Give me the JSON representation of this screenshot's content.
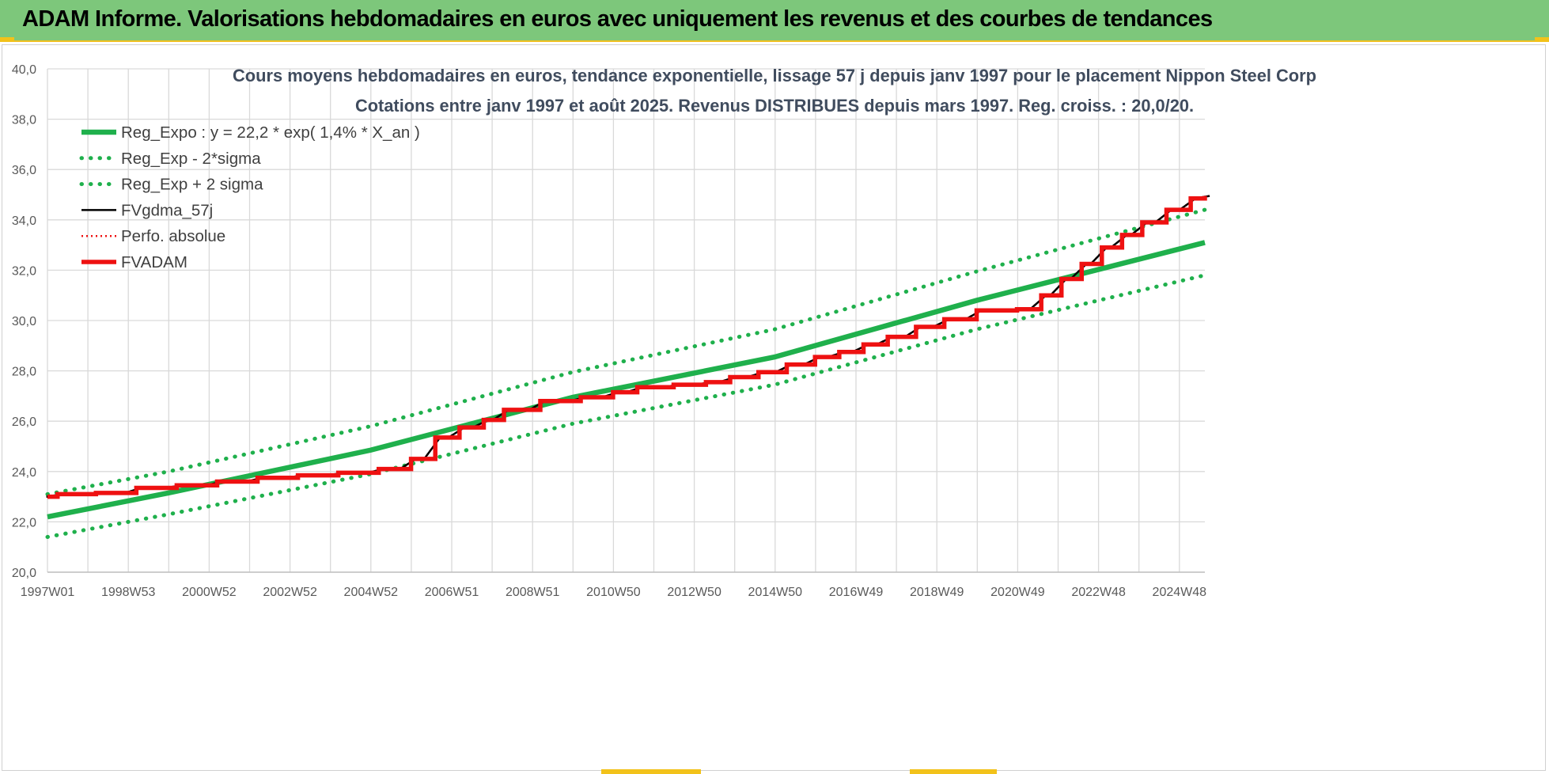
{
  "header": {
    "title": "ADAM Informe. Valorisations hebdomadaires en euros avec uniquement les revenus et des courbes de tendances"
  },
  "colors": {
    "header_bg": "#7dc77b",
    "green": "#1fb04c",
    "black": "#000000",
    "red": "#ee1111",
    "grid": "#d9d9d9"
  },
  "chart_data": {
    "type": "line",
    "title": "Cours moyens hebdomadaires en euros, tendance exponentielle, lissage 57 j depuis janv 1997 pour le placement Nippon Steel Corp",
    "subtitle": "Cotations entre janv 1997 et août 2025.  Revenus DISTRIBUES depuis mars 1997. Reg. croiss. : 20,0/20.",
    "x_range": [
      1997.0,
      2025.65
    ],
    "ylim": [
      20,
      40
    ],
    "y_ticks": [
      "20,0",
      "22,0",
      "24,0",
      "26,0",
      "28,0",
      "30,0",
      "32,0",
      "34,0",
      "36,0",
      "38,0",
      "40,0"
    ],
    "x_tick_labels": [
      "1997W01",
      "1998W53",
      "2000W52",
      "2002W52",
      "2004W52",
      "2006W51",
      "2008W51",
      "2010W50",
      "2012W50",
      "2014W50",
      "2016W49",
      "2018W49",
      "2020W49",
      "2022W48",
      "2024W48"
    ],
    "grid": true,
    "legend_position": "top-left",
    "series": [
      {
        "name": "Reg_Expo : y = 22,2 * exp( 1,4% *  X_an )",
        "style": "solid-green",
        "x": [
          1997.0,
          2000.0,
          2005.0,
          2010.0,
          2015.0,
          2020.0,
          2025.65
        ],
        "values": [
          22.2,
          23.15,
          24.85,
          26.95,
          28.55,
          30.8,
          33.1
        ]
      },
      {
        "name": "Reg_Exp - 2*sigma",
        "style": "dotted-green",
        "x": [
          1997.0,
          2000.0,
          2005.0,
          2010.0,
          2015.0,
          2020.0,
          2025.65
        ],
        "values": [
          21.4,
          22.3,
          23.9,
          25.9,
          27.45,
          29.65,
          31.8
        ]
      },
      {
        "name": "Reg_Exp + 2 sigma",
        "style": "dotted-green",
        "x": [
          1997.0,
          2000.0,
          2005.0,
          2010.0,
          2015.0,
          2020.0,
          2025.65
        ],
        "values": [
          23.1,
          24.0,
          25.8,
          27.95,
          29.65,
          31.95,
          34.4
        ]
      },
      {
        "name": "FVgdma_57j",
        "style": "solid-black-thin",
        "x": [
          1997.0,
          1997.25,
          1998.2,
          1999.2,
          2000.2,
          2001.2,
          2002.2,
          2003.2,
          2004.2,
          2005.2,
          2006.0,
          2006.6,
          2007.2,
          2007.8,
          2008.3,
          2009.2,
          2010.2,
          2011.0,
          2011.6,
          2012.5,
          2013.3,
          2013.9,
          2014.6,
          2015.3,
          2016.0,
          2016.6,
          2017.2,
          2017.8,
          2018.5,
          2019.2,
          2020.0,
          2021.0,
          2021.6,
          2022.1,
          2022.6,
          2023.1,
          2023.6,
          2024.1,
          2024.7,
          2025.3,
          2025.65
        ],
        "values": [
          23.0,
          23.1,
          23.15,
          23.35,
          23.45,
          23.6,
          23.75,
          23.85,
          23.95,
          24.1,
          24.5,
          25.35,
          25.75,
          26.05,
          26.45,
          26.8,
          26.95,
          27.15,
          27.35,
          27.45,
          27.55,
          27.75,
          27.95,
          28.25,
          28.55,
          28.75,
          29.05,
          29.35,
          29.75,
          30.05,
          30.4,
          30.45,
          31.0,
          31.65,
          32.25,
          32.9,
          33.4,
          33.9,
          34.4,
          34.85,
          34.95
        ]
      },
      {
        "name": "Perfo. absolue",
        "style": "dotted-red",
        "x": [
          1997.0,
          1997.25,
          1998.2,
          1999.2,
          2000.2,
          2001.2,
          2002.2,
          2003.2,
          2004.2,
          2005.2,
          2006.0,
          2006.6,
          2007.2,
          2007.8,
          2008.3,
          2009.2,
          2010.2,
          2011.0,
          2011.6,
          2012.5,
          2013.3,
          2013.9,
          2014.6,
          2015.3,
          2016.0,
          2016.6,
          2017.2,
          2017.8,
          2018.5,
          2019.2,
          2020.0,
          2021.0,
          2021.6,
          2022.1,
          2022.6,
          2023.1,
          2023.6,
          2024.1,
          2024.7,
          2025.3,
          2025.65
        ],
        "values": [
          23.0,
          23.1,
          23.15,
          23.35,
          23.45,
          23.6,
          23.75,
          23.85,
          23.95,
          24.1,
          24.5,
          25.35,
          25.75,
          26.05,
          26.45,
          26.8,
          26.95,
          27.15,
          27.35,
          27.45,
          27.55,
          27.75,
          27.95,
          28.25,
          28.55,
          28.75,
          29.05,
          29.35,
          29.75,
          30.05,
          30.4,
          30.45,
          31.0,
          31.65,
          32.25,
          32.9,
          33.4,
          33.9,
          34.4,
          34.85,
          34.95
        ]
      },
      {
        "name": "FVADAM",
        "style": "steps-red-thick",
        "x": [
          1997.0,
          1997.25,
          1998.2,
          1999.2,
          2000.2,
          2001.2,
          2002.2,
          2003.2,
          2004.2,
          2005.2,
          2006.0,
          2006.6,
          2007.2,
          2007.8,
          2008.3,
          2009.2,
          2010.2,
          2011.0,
          2011.6,
          2012.5,
          2013.3,
          2013.9,
          2014.6,
          2015.3,
          2016.0,
          2016.6,
          2017.2,
          2017.8,
          2018.5,
          2019.2,
          2020.0,
          2021.0,
          2021.6,
          2022.1,
          2022.6,
          2023.1,
          2023.6,
          2024.1,
          2024.7,
          2025.3,
          2025.65
        ],
        "values": [
          23.0,
          23.1,
          23.15,
          23.35,
          23.45,
          23.6,
          23.75,
          23.85,
          23.95,
          24.1,
          24.5,
          25.35,
          25.75,
          26.05,
          26.45,
          26.8,
          26.95,
          27.15,
          27.35,
          27.45,
          27.55,
          27.75,
          27.95,
          28.25,
          28.55,
          28.75,
          29.05,
          29.35,
          29.75,
          30.05,
          30.4,
          30.45,
          31.0,
          31.65,
          32.25,
          32.9,
          33.4,
          33.9,
          34.4,
          34.85,
          34.95
        ]
      }
    ]
  }
}
